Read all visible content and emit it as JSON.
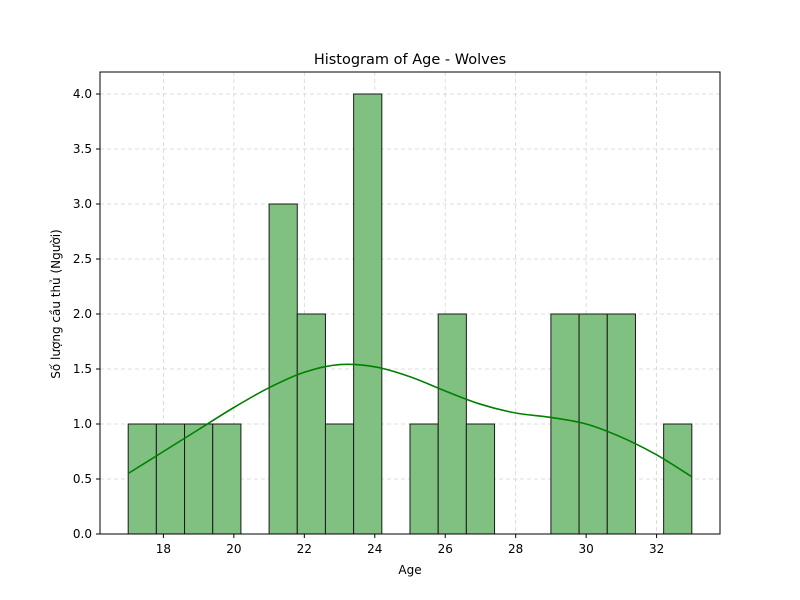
{
  "chart_data": {
    "type": "bar",
    "title": "Histogram of Age - Wolves",
    "xlabel": "Age",
    "ylabel": "Số lượng cầu thủ (Người)",
    "xlim": [
      16.2,
      33.8
    ],
    "ylim": [
      0,
      4.2
    ],
    "xticks": [
      18,
      20,
      22,
      24,
      26,
      28,
      30,
      32
    ],
    "yticks": [
      0.0,
      0.5,
      1.0,
      1.5,
      2.0,
      2.5,
      3.0,
      3.5,
      4.0
    ],
    "grid": true,
    "bins": {
      "start": 17,
      "end": 33,
      "count": 20,
      "counts": [
        1,
        1,
        1,
        1,
        0,
        3,
        2,
        1,
        4,
        0,
        1,
        2,
        1,
        0,
        0,
        2,
        2,
        2,
        0,
        1
      ]
    },
    "kde": {
      "x": [
        17,
        18,
        19,
        20,
        21,
        22,
        23,
        24,
        25,
        26,
        27,
        28,
        29,
        30,
        31,
        32,
        33
      ],
      "y": [
        0.55,
        0.75,
        0.95,
        1.15,
        1.33,
        1.47,
        1.54,
        1.52,
        1.43,
        1.3,
        1.18,
        1.1,
        1.06,
        1.0,
        0.88,
        0.72,
        0.52
      ]
    },
    "colors": {
      "bar_fill": "#80c080",
      "bar_edge": "#1a1a1a",
      "kde_line": "#008000",
      "grid": "#d3d3d3"
    }
  }
}
